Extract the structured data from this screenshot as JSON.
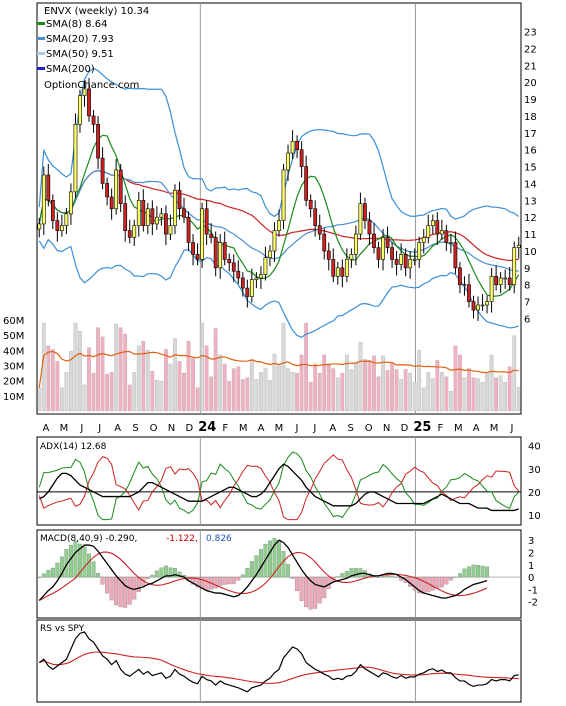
{
  "chart_data": [
    {
      "type": "candlestick",
      "panel": "price",
      "title": "ENVX (weekly) 10.34",
      "watermark": "OptionChance.com",
      "yticks": [
        6,
        7,
        8,
        9,
        10,
        11,
        12,
        13,
        14,
        15,
        16,
        17,
        18,
        19,
        20,
        21,
        22,
        23
      ],
      "ylim": [
        5.2,
        23.8
      ],
      "vol_ticks": [
        "10M",
        "20M",
        "30M",
        "40M",
        "50M",
        "60M"
      ],
      "vol_max": 60,
      "x_labels": [
        "A",
        "M",
        "J",
        "J",
        "A",
        "S",
        "O",
        "N",
        "D",
        "24",
        "F",
        "M",
        "A",
        "M",
        "J",
        "J",
        "A",
        "S",
        "O",
        "N",
        "D",
        "25",
        "F",
        "M",
        "A",
        "M",
        "J"
      ],
      "legend": [
        {
          "label": "SMA(8) 8.64",
          "color": "#1a8a1a"
        },
        {
          "label": "SMA(20) 7.93",
          "color": "#4a8fd0"
        },
        {
          "label": "SMA(50) 9.51",
          "color": "#a9c9ea"
        },
        {
          "label": "SMA(200)",
          "color": "#2020c0"
        }
      ],
      "colors": {
        "up": "#ffff66",
        "down": "#cc2222",
        "bull": "#f0f0f0",
        "sma8": "#1a8a1a",
        "sma20": "#4a8fd0",
        "sma50": "#a9c9ea",
        "band": "#3a8fd8",
        "ma40": "#cc2222",
        "volma": "#e06010",
        "volup": "#d8d8d8",
        "voldown": "#f0b0c0"
      },
      "closes": [
        11.6,
        14.5,
        13.0,
        11.8,
        11.2,
        11.5,
        12.2,
        13.5,
        17.5,
        19.2,
        19.6,
        18.0,
        17.5,
        15.5,
        14.0,
        13.2,
        12.5,
        14.8,
        12.8,
        11.2,
        10.8,
        11.5,
        13.0,
        11.5,
        12.5,
        11.6,
        12.0,
        12.2,
        11.0,
        11.5,
        13.6,
        12.5,
        12.0,
        10.5,
        9.8,
        9.5,
        12.5,
        11.0,
        10.8,
        9.0,
        10.5,
        9.5,
        9.3,
        8.8,
        8.4,
        7.8,
        7.3,
        8.3,
        8.4,
        8.6,
        9.6,
        10.0,
        11.2,
        11.8,
        14.8,
        15.8,
        16.5,
        16.0,
        15.0,
        13.0,
        12.5,
        11.5,
        11.0,
        10.0,
        9.5,
        8.5,
        9.0,
        8.5,
        9.5,
        9.8,
        11.0,
        12.8,
        11.8,
        11.0,
        10.2,
        9.5,
        10.8,
        10.2,
        9.5,
        9.2,
        9.8,
        9.0,
        9.5,
        9.5,
        10.5,
        10.8,
        11.5,
        11.8,
        11.0,
        11.2,
        10.5,
        10.5,
        9.0,
        8.0,
        8.0,
        7.0,
        6.5,
        6.8,
        6.8,
        7.0,
        8.5,
        8.0,
        8.4,
        8.4,
        8.0,
        10.2,
        10.34
      ],
      "adx": {
        "name": "ADX(14) 12.68",
        "yticks": [
          10,
          20,
          30,
          40
        ],
        "ylim": [
          7,
          42
        ],
        "ref": 20,
        "values": [
          17,
          18,
          20,
          23,
          26,
          28,
          28,
          27,
          25,
          23,
          22,
          21,
          20,
          19,
          18,
          18,
          18,
          18,
          18,
          18,
          18,
          19,
          20,
          22,
          24,
          24,
          23,
          22,
          21,
          20,
          19,
          18,
          17,
          16,
          16,
          16,
          16,
          17,
          18,
          19,
          20,
          21,
          22,
          22,
          21,
          20,
          19,
          18,
          18,
          19,
          21,
          24,
          27,
          30,
          32,
          31,
          29,
          27,
          25,
          22,
          20,
          18,
          17,
          16,
          15,
          14,
          14,
          14,
          14,
          14,
          15,
          17,
          19,
          20,
          20,
          19,
          18,
          17,
          16,
          15,
          15,
          15,
          15,
          15,
          15,
          15,
          16,
          17,
          18,
          19,
          18,
          17,
          16,
          15,
          15,
          15,
          14,
          13,
          13,
          13,
          12,
          12,
          12,
          12,
          12,
          12,
          12.68
        ]
      },
      "macd": {
        "name": "MACD(8,40,9) -0.290,",
        "val1": "-1.122,",
        "val2": "0.826",
        "yticks": [
          -2,
          -1,
          0,
          1,
          2,
          3
        ],
        "ylim": [
          -3,
          3.5
        ],
        "values": [
          -1.9,
          -1.5,
          -1.1,
          -0.8,
          -0.3,
          0.3,
          1.0,
          1.5,
          2.0,
          2.3,
          2.6,
          2.6,
          2.5,
          2.1,
          1.6,
          1.1,
          0.6,
          0.1,
          -0.3,
          -0.7,
          -0.9,
          -1.0,
          -0.9,
          -0.8,
          -0.6,
          -0.5,
          -0.3,
          -0.1,
          0.1,
          0.1,
          0.2,
          0.1,
          0.0,
          -0.3,
          -0.5,
          -0.7,
          -0.9,
          -1.1,
          -1.2,
          -1.3,
          -1.3,
          -1.4,
          -1.5,
          -1.6,
          -1.5,
          -1.2,
          -0.8,
          -0.3,
          0.2,
          0.8,
          1.4,
          2.0,
          2.6,
          3.0,
          2.8,
          2.4,
          1.8,
          1.2,
          0.6,
          0.1,
          -0.3,
          -0.6,
          -0.7,
          -0.8,
          -0.6,
          -0.4,
          -0.3,
          -0.2,
          -0.1,
          0.1,
          0.2,
          0.3,
          0.3,
          0.2,
          0.1,
          0.1,
          0.2,
          0.3,
          0.3,
          0.2,
          0.0,
          -0.2,
          -0.5,
          -0.8,
          -1.1,
          -1.3,
          -1.4,
          -1.5,
          -1.6,
          -1.7,
          -1.7,
          -1.6,
          -1.5,
          -1.3,
          -1.0,
          -0.8,
          -0.6,
          -0.5,
          -0.4,
          -0.29
        ]
      },
      "rs": {
        "name": "RS vs SPY",
        "values": [
          0.55,
          0.6,
          0.5,
          0.45,
          0.5,
          0.55,
          0.6,
          0.75,
          0.9,
          0.98,
          1.0,
          0.9,
          0.85,
          0.75,
          0.65,
          0.6,
          0.52,
          0.58,
          0.45,
          0.38,
          0.35,
          0.4,
          0.45,
          0.38,
          0.42,
          0.36,
          0.38,
          0.4,
          0.32,
          0.35,
          0.45,
          0.38,
          0.35,
          0.3,
          0.26,
          0.24,
          0.35,
          0.3,
          0.28,
          0.22,
          0.28,
          0.24,
          0.22,
          0.2,
          0.18,
          0.15,
          0.12,
          0.18,
          0.2,
          0.22,
          0.28,
          0.32,
          0.4,
          0.45,
          0.62,
          0.7,
          0.78,
          0.75,
          0.68,
          0.55,
          0.5,
          0.45,
          0.42,
          0.38,
          0.35,
          0.3,
          0.32,
          0.3,
          0.35,
          0.36,
          0.42,
          0.52,
          0.46,
          0.42,
          0.38,
          0.34,
          0.4,
          0.38,
          0.34,
          0.32,
          0.36,
          0.32,
          0.34,
          0.34,
          0.38,
          0.4,
          0.44,
          0.46,
          0.42,
          0.44,
          0.4,
          0.4,
          0.33,
          0.28,
          0.28,
          0.23,
          0.2,
          0.22,
          0.22,
          0.24,
          0.3,
          0.28,
          0.3,
          0.3,
          0.28,
          0.36,
          0.37
        ]
      }
    }
  ]
}
